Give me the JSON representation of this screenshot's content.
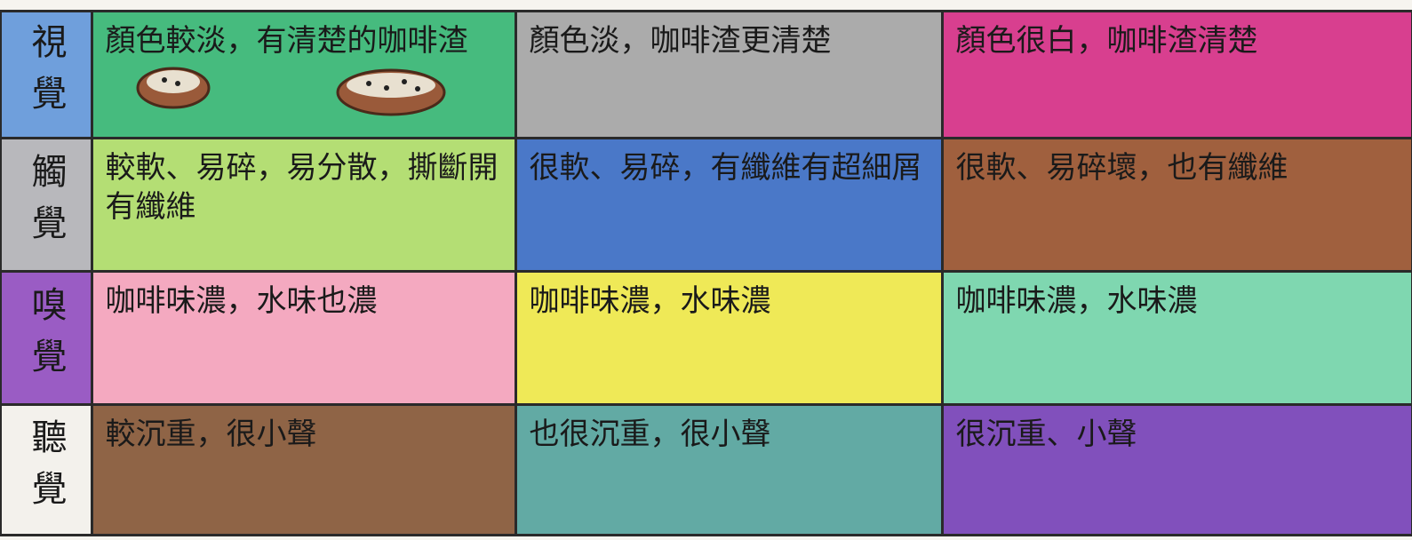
{
  "table": {
    "rows": [
      {
        "header": "視覺",
        "cells": [
          "顏色較淡，有清楚的咖啡渣",
          "顏色淡，咖啡渣更清楚",
          "顏色很白，咖啡渣清楚"
        ]
      },
      {
        "header": "觸覺",
        "cells": [
          "較軟、易碎，易分散，撕斷開有纖維",
          "很軟、易碎，有纖維有超細屑",
          "很軟、易碎壞，也有纖維"
        ]
      },
      {
        "header": "嗅覺",
        "cells": [
          "咖啡味濃，水味也濃",
          "咖啡味濃，水味濃",
          "咖啡味濃，水味濃"
        ]
      },
      {
        "header": "聽覺",
        "cells": [
          "較沉重，很小聲",
          "也很沉重，很小聲",
          "很沉重、小聲"
        ]
      }
    ]
  }
}
